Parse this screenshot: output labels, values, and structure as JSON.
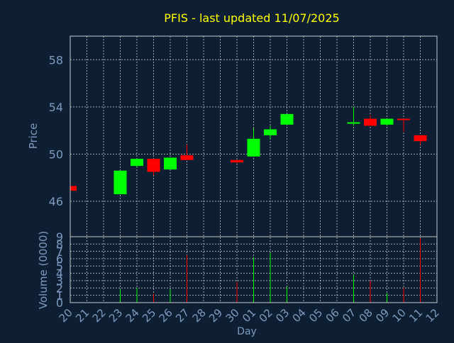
{
  "chart_data": {
    "type": "candlestick",
    "title": "PFIS - last updated 11/07/2025",
    "xlabel": "Day",
    "price_axis": {
      "label": "Price",
      "ylim": [
        43,
        60
      ],
      "ticks": [
        46,
        50,
        54,
        58
      ]
    },
    "volume_axis": {
      "label": "Volume (0000)",
      "ylim": [
        0,
        9
      ],
      "ticks": [
        0,
        1,
        2,
        3,
        4,
        5,
        6,
        7,
        8,
        9
      ]
    },
    "x_ticks": [
      "20",
      "21",
      "22",
      "23",
      "24",
      "25",
      "26",
      "27",
      "28",
      "29",
      "30",
      "01",
      "02",
      "03",
      "04",
      "05",
      "06",
      "07",
      "08",
      "09",
      "10",
      "11",
      "12"
    ],
    "grid": true,
    "colors": {
      "background": "#0f1f33",
      "axis_text": "#7d9bc0",
      "title": "#ffff00",
      "grid": "#c8c8c8",
      "up": "#00ff00",
      "down": "#ff0000"
    },
    "candles": [
      {
        "day": "20",
        "open": 47.3,
        "close": 46.9,
        "high": 47.3,
        "low": 46.9,
        "volume": 0
      },
      {
        "day": "23",
        "open": 46.6,
        "close": 48.6,
        "high": 48.6,
        "low": 46.6,
        "volume": 1.8
      },
      {
        "day": "24",
        "open": 49.0,
        "close": 49.6,
        "high": 49.6,
        "low": 48.9,
        "volume": 2.0
      },
      {
        "day": "25",
        "open": 49.6,
        "close": 48.5,
        "high": 49.6,
        "low": 48.2,
        "volume": 1.2
      },
      {
        "day": "26",
        "open": 48.7,
        "close": 49.7,
        "high": 49.7,
        "low": 48.7,
        "volume": 1.8
      },
      {
        "day": "27",
        "open": 49.9,
        "close": 49.5,
        "high": 50.8,
        "low": 49.5,
        "volume": 6.5
      },
      {
        "day": "30",
        "open": 49.5,
        "close": 49.3,
        "high": 49.5,
        "low": 49.2,
        "volume": 2.8
      },
      {
        "day": "01",
        "open": 49.8,
        "close": 51.3,
        "high": 52.2,
        "low": 49.8,
        "volume": 6.2
      },
      {
        "day": "02",
        "open": 51.6,
        "close": 52.1,
        "high": 52.4,
        "low": 51.3,
        "volume": 6.8
      },
      {
        "day": "03",
        "open": 52.5,
        "close": 53.4,
        "high": 53.4,
        "low": 52.5,
        "volume": 2.2
      },
      {
        "day": "07",
        "open": 52.6,
        "close": 52.7,
        "high": 54.0,
        "low": 52.4,
        "volume": 3.8
      },
      {
        "day": "08",
        "open": 53.0,
        "close": 52.4,
        "high": 53.3,
        "low": 52.4,
        "volume": 3.0
      },
      {
        "day": "09",
        "open": 52.5,
        "close": 53.0,
        "high": 53.0,
        "low": 52.4,
        "volume": 1.3
      },
      {
        "day": "10",
        "open": 53.0,
        "close": 52.9,
        "high": 53.0,
        "low": 51.9,
        "volume": 2.0
      },
      {
        "day": "11",
        "open": 51.6,
        "close": 51.1,
        "high": 51.6,
        "low": 50.8,
        "volume": 8.8
      }
    ]
  }
}
